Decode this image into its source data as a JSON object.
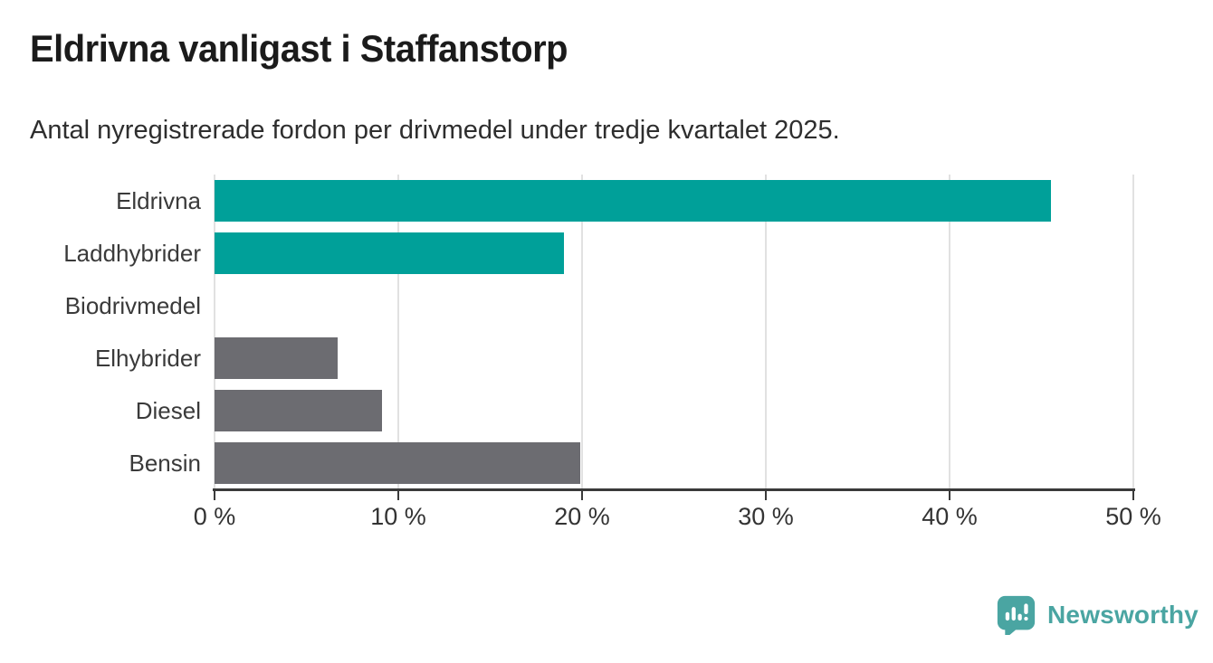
{
  "title": "Eldrivna vanligast i Staffanstorp",
  "subtitle": "Antal nyregistrerade fordon per drivmedel under tredje kvartalet 2025.",
  "chart_data": {
    "type": "bar",
    "orientation": "horizontal",
    "title": "Eldrivna vanligast i Staffanstorp",
    "subtitle": "Antal nyregistrerade fordon per drivmedel under tredje kvartalet 2025.",
    "categories": [
      "Eldrivna",
      "Laddhybrider",
      "Biodrivmedel",
      "Elhybrider",
      "Diesel",
      "Bensin"
    ],
    "values": [
      45.5,
      19.0,
      0,
      6.7,
      9.1,
      19.9
    ],
    "unit": "%",
    "bar_colors": [
      "#00a099",
      "#00a099",
      "#6c6c71",
      "#6c6c71",
      "#6c6c71",
      "#6c6c71"
    ],
    "xlim": [
      0,
      50
    ],
    "x_ticks": [
      0,
      10,
      20,
      30,
      40,
      50
    ],
    "x_tick_labels": [
      "0 %",
      "10 %",
      "20 %",
      "30 %",
      "40 %",
      "50 %"
    ],
    "grid": true,
    "legend": false
  },
  "colors": {
    "accent_teal": "#00a099",
    "neutral_gray": "#6c6c71",
    "gridline": "#e1e1e1",
    "axis": "#3a3a3a",
    "logo_teal": "#4aa5a2"
  },
  "footer": {
    "brand": "Newsworthy",
    "logo_icon": "newsworthy-speech-bubble-bar-chart-icon"
  }
}
